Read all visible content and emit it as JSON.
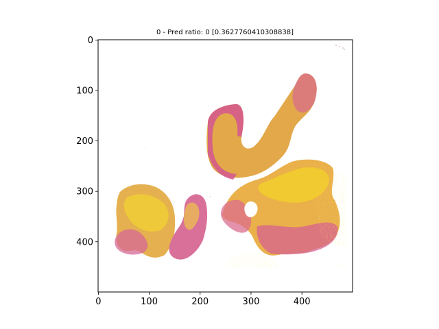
{
  "figure": {
    "title": "0 - Pred ratio: 0 [0.3627760410308838]"
  },
  "axes": {
    "x_ticks": [
      "0",
      "100",
      "200",
      "300",
      "400"
    ],
    "y_ticks": [
      "0",
      "100",
      "200",
      "300",
      "400"
    ],
    "x_tick_values": [
      0,
      100,
      200,
      300,
      400
    ],
    "y_tick_values": [
      0,
      100,
      200,
      300,
      400
    ],
    "xlim": [
      -0.5,
      499.5
    ],
    "ylim": [
      499.5,
      -0.5
    ]
  },
  "image": {
    "subject": "histology tissue slide heatmap",
    "colors": {
      "magenta": "#d0408e",
      "pink": "#e48fb8",
      "orange": "#eea046",
      "yellow": "#f0d21e",
      "background": "#ffffff"
    }
  }
}
